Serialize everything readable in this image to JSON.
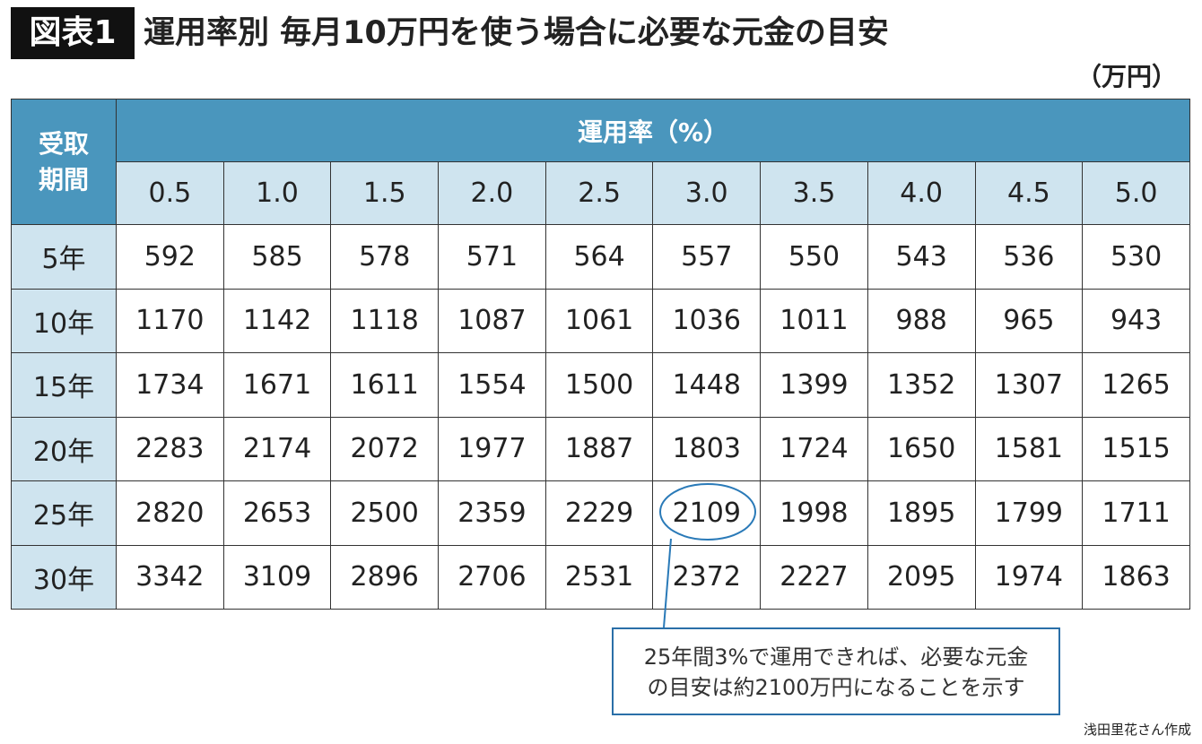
{
  "header": {
    "label": "図表1",
    "title": "運用率別 毎月10万円を使う場合に必要な元金の目安",
    "unit": "（万円）"
  },
  "table": {
    "corner": "受取\n期間",
    "group_header": "運用率（%）",
    "columns": [
      "0.5",
      "1.0",
      "1.5",
      "2.0",
      "2.5",
      "3.0",
      "3.5",
      "4.0",
      "4.5",
      "5.0"
    ],
    "rows": [
      {
        "label": "5年",
        "values": [
          592,
          585,
          578,
          571,
          564,
          557,
          550,
          543,
          536,
          530
        ]
      },
      {
        "label": "10年",
        "values": [
          1170,
          1142,
          1118,
          1087,
          1061,
          1036,
          1011,
          988,
          965,
          943
        ]
      },
      {
        "label": "15年",
        "values": [
          1734,
          1671,
          1611,
          1554,
          1500,
          1448,
          1399,
          1352,
          1307,
          1265
        ]
      },
      {
        "label": "20年",
        "values": [
          2283,
          2174,
          2072,
          1977,
          1887,
          1803,
          1724,
          1650,
          1581,
          1515
        ]
      },
      {
        "label": "25年",
        "values": [
          2820,
          2653,
          2500,
          2359,
          2229,
          2109,
          1998,
          1895,
          1799,
          1711
        ]
      },
      {
        "label": "30年",
        "values": [
          3342,
          3109,
          2896,
          2706,
          2531,
          2372,
          2227,
          2095,
          1974,
          1863
        ]
      }
    ]
  },
  "callout": "25年間3%で運用できれば、必要な元金\nの目安は約2100万円になることを示す",
  "source": "浅田里花さん作成"
}
